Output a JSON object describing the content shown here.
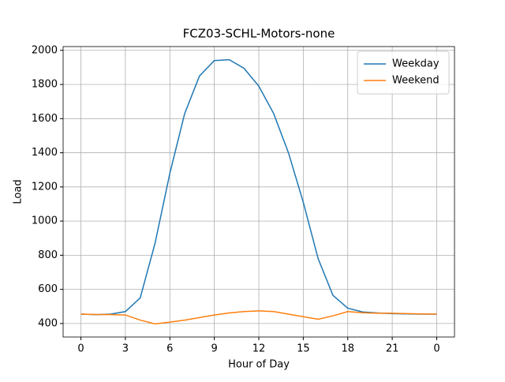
{
  "chart_data": {
    "type": "line",
    "title": "FCZ03-SCHL-Motors-none",
    "xlabel": "Hour of Day",
    "ylabel": "Load",
    "x": [
      0,
      1,
      2,
      3,
      4,
      5,
      6,
      7,
      8,
      9,
      10,
      11,
      12,
      13,
      14,
      15,
      16,
      17,
      18,
      19,
      20,
      21,
      22,
      23,
      24
    ],
    "series": [
      {
        "name": "Weekday",
        "color": "#1f77b4",
        "values": [
          455,
          452,
          455,
          470,
          550,
          870,
          1280,
          1630,
          1850,
          1940,
          1945,
          1895,
          1790,
          1630,
          1400,
          1110,
          780,
          565,
          490,
          468,
          462,
          458,
          456,
          455,
          455
        ]
      },
      {
        "name": "Weekend",
        "color": "#ff7f0e",
        "values": [
          455,
          453,
          452,
          450,
          420,
          398,
          408,
          420,
          435,
          450,
          462,
          470,
          474,
          470,
          455,
          440,
          425,
          445,
          470,
          463,
          460,
          460,
          458,
          456,
          455
        ]
      }
    ],
    "xlim": [
      -1.2,
      25.2
    ],
    "ylim": [
      321,
      2022
    ],
    "xticks": [
      0,
      3,
      6,
      9,
      12,
      15,
      18,
      21,
      {
        "value": 24,
        "label": "0"
      }
    ],
    "yticks": [
      400,
      600,
      800,
      1000,
      1200,
      1400,
      1600,
      1800,
      2000
    ],
    "grid": true,
    "legend": "upper right"
  }
}
